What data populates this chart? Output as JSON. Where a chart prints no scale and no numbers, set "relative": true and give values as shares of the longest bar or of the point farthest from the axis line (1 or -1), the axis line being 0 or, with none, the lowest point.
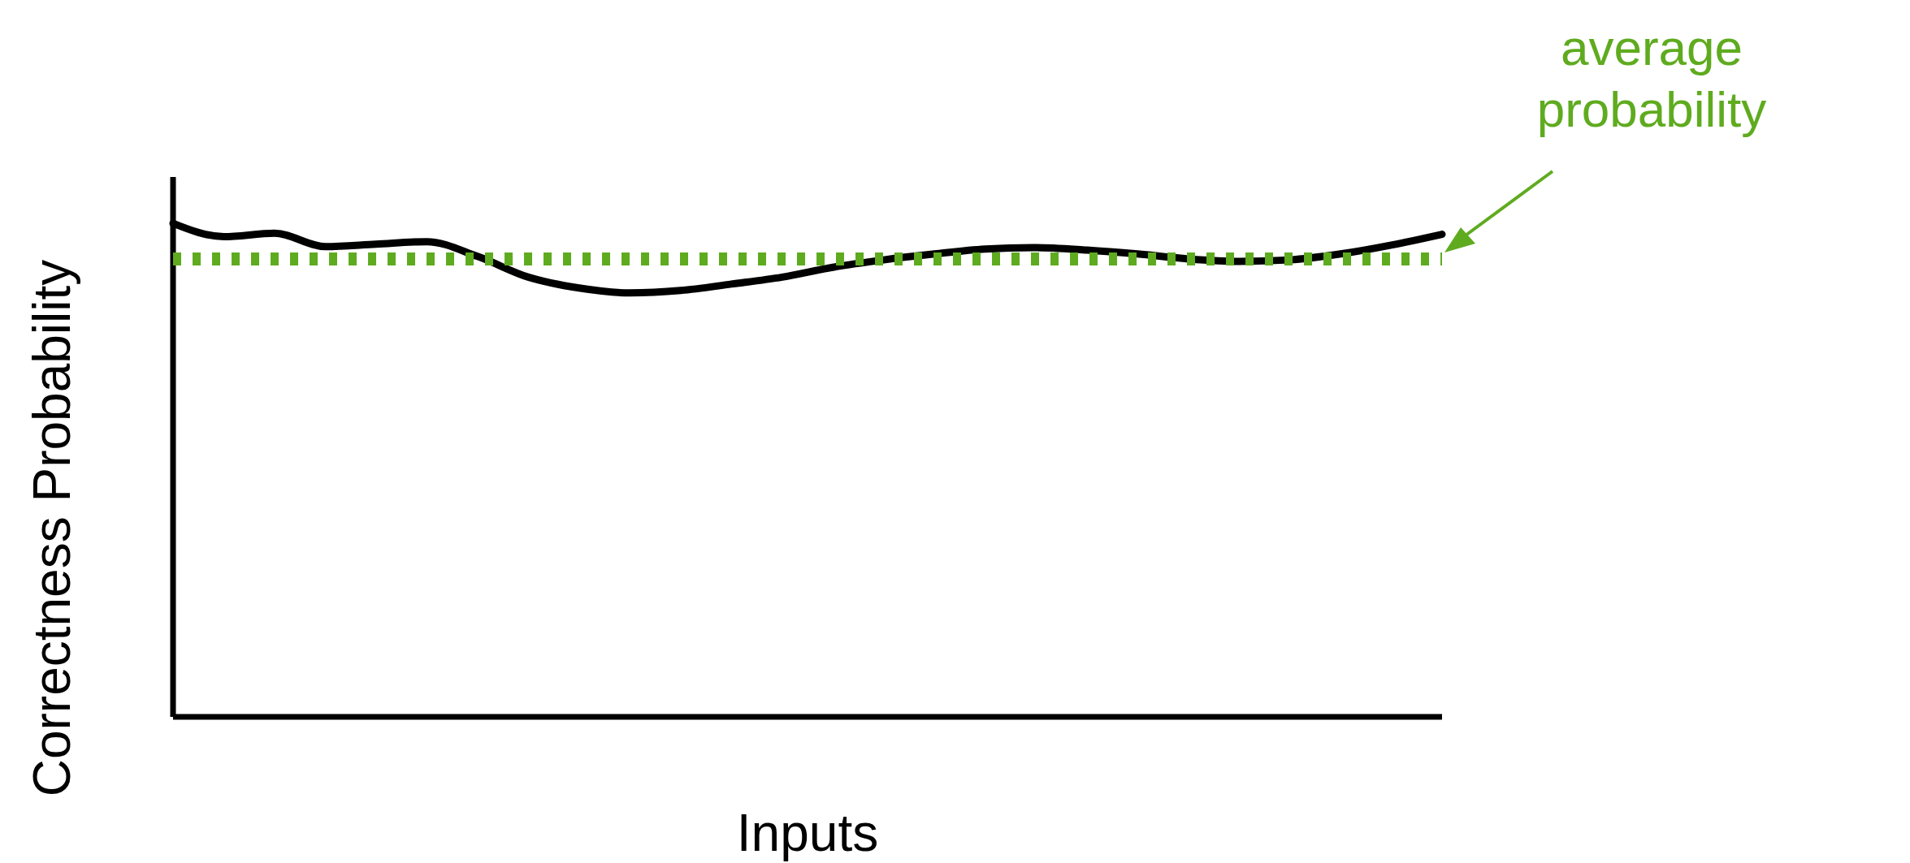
{
  "chart_data": {
    "type": "line",
    "relative": true,
    "xlabel": "Inputs",
    "ylabel": "Correctness Probability",
    "categories": [
      null,
      null,
      null,
      null,
      null,
      null,
      null,
      null,
      null,
      null,
      null,
      null,
      null,
      null,
      null,
      null,
      null,
      null,
      null,
      null,
      null,
      null,
      null,
      null,
      null,
      null
    ],
    "series": [
      {
        "color": "#000000",
        "values": [
          1.0,
          0.973,
          0.98,
          0.953,
          0.958,
          0.963,
          0.933,
          0.891,
          0.869,
          0.859,
          0.864,
          0.877,
          0.891,
          0.911,
          0.926,
          0.938,
          0.948,
          0.951,
          0.946,
          0.938,
          0.928,
          0.923,
          0.926,
          0.938,
          0.956,
          0.978
        ]
      }
    ],
    "ref_lines": [
      {
        "axis": "y",
        "value": 0.928,
        "label": "average probability",
        "color": "#5fab1f",
        "line_style": "dotted"
      }
    ],
    "marker": "none",
    "line_style": "solid"
  }
}
